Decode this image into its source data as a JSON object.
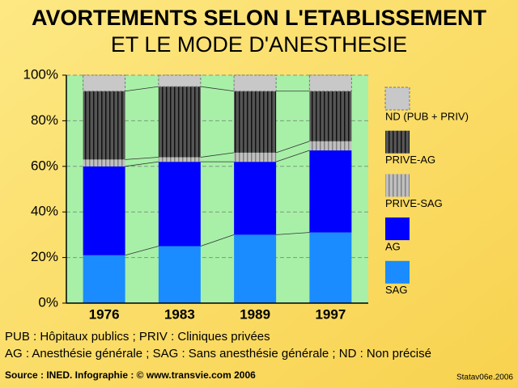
{
  "chart_data": {
    "type": "stacked-bar",
    "title": "AVORTEMENTS SELON L'ETABLISSEMENT",
    "subtitle": "ET LE MODE D'ANESTHESIE",
    "categories": [
      "1976",
      "1983",
      "1989",
      "1997"
    ],
    "series": [
      {
        "name": "SAG",
        "color": "#1a8cff",
        "values": [
          21,
          25,
          30,
          31
        ]
      },
      {
        "name": "AG",
        "color": "#0000ff",
        "values": [
          39,
          37,
          32,
          36
        ]
      },
      {
        "name": "PRIVE-SAG",
        "color": "#c0c0c0",
        "pattern": "vertical-stripes",
        "values": [
          3,
          2,
          4,
          4
        ]
      },
      {
        "name": "PRIVE-AG",
        "color": "#555555",
        "pattern": "vertical-stripes",
        "values": [
          30,
          31,
          27,
          22
        ]
      },
      {
        "name": "ND (PUB + PRIV)",
        "color": "#c8c8c8",
        "values": [
          7,
          5,
          7,
          7
        ]
      }
    ],
    "ylim": [
      0,
      100
    ],
    "yticks": [
      {
        "value": 0,
        "label": "0%"
      },
      {
        "value": 20,
        "label": "20%"
      },
      {
        "value": 40,
        "label": "40%"
      },
      {
        "value": 60,
        "label": "60%"
      },
      {
        "value": 80,
        "label": "80%"
      },
      {
        "value": 100,
        "label": "100%"
      }
    ],
    "grid": true,
    "notes": [
      "PUB : Hôpitaux publics ; PRIV : Cliniques privées",
      "AG : Anesthésie générale ; SAG : Sans anesthésie générale ; ND : Non précisé"
    ],
    "source": "Source : INED. Infographie : © www.transvie.com 2006",
    "credit": "Statav06e.2006"
  }
}
